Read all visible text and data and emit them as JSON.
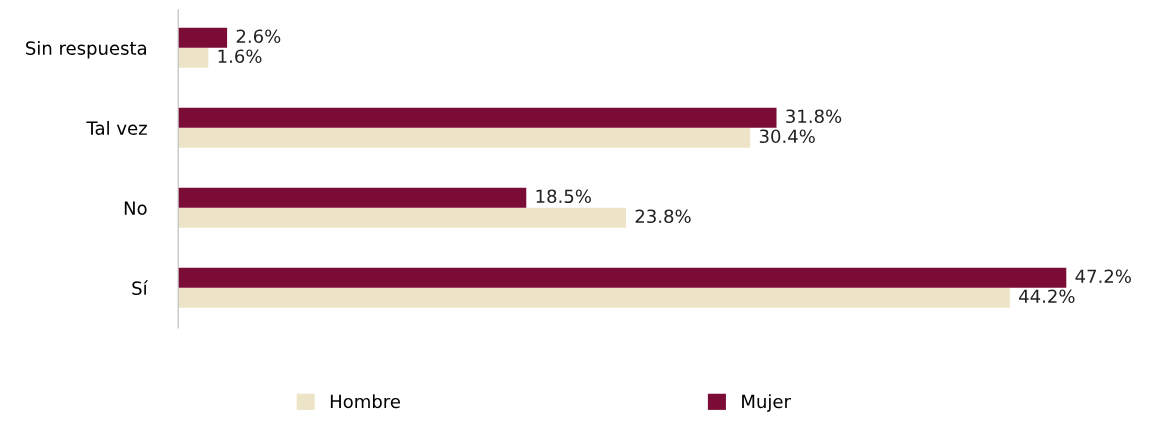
{
  "chart_data": {
    "type": "bar",
    "orientation": "horizontal",
    "categories": [
      "Sin respuesta",
      "Tal vez",
      "No",
      "Sí"
    ],
    "series": [
      {
        "name": "Hombre",
        "color": "#ede3c6",
        "values": [
          1.6,
          30.4,
          23.8,
          44.2
        ],
        "value_labels": [
          "1.6%",
          "30.4%",
          "23.8%",
          "44.2%"
        ]
      },
      {
        "name": "Mujer",
        "color": "#7b0c35",
        "values": [
          2.6,
          31.8,
          18.5,
          47.2
        ],
        "value_labels": [
          "2.6%",
          "31.8%",
          "18.5%",
          "47.2%"
        ]
      }
    ],
    "tick_labels": "y",
    "grid": false,
    "legend": "bottom"
  }
}
